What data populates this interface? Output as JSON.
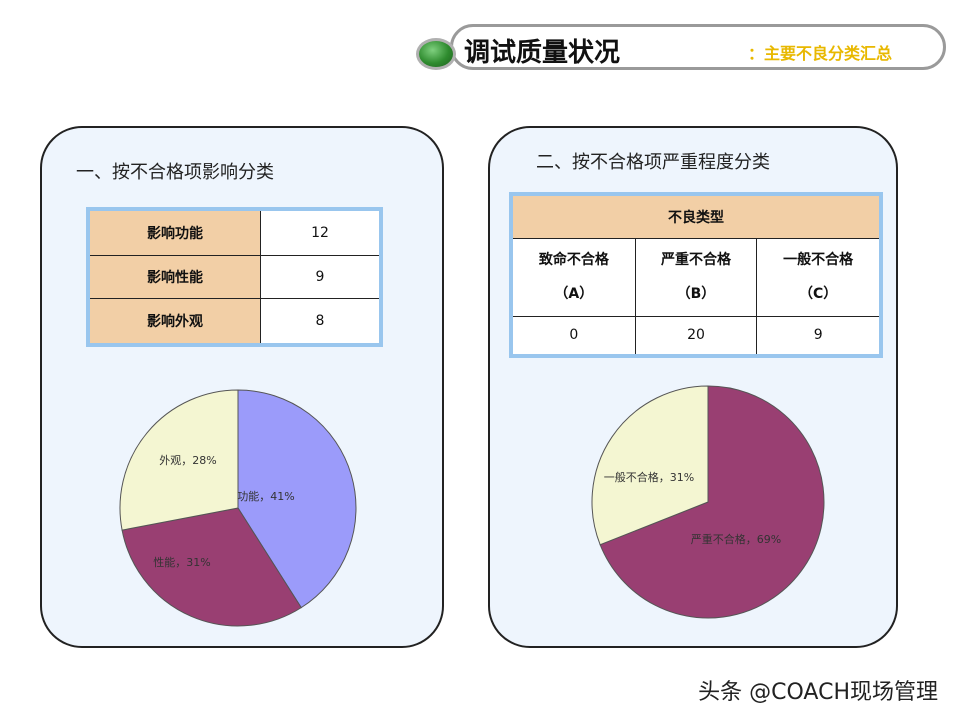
{
  "header": {
    "title": "调试质量状况",
    "subtitle": "：主要不良分类汇总"
  },
  "left_panel": {
    "title": "一、按不合格项影响分类",
    "rows": [
      {
        "label": "影响功能",
        "value": "12"
      },
      {
        "label": "影响性能",
        "value": "9"
      },
      {
        "label": "影响外观",
        "value": "8"
      }
    ]
  },
  "right_panel": {
    "title": "二、按不合格项严重程度分类",
    "table_header": "不良类型",
    "columns": [
      {
        "name": "致命不合格",
        "code": "（A）",
        "value": "0"
      },
      {
        "name": "严重不合格",
        "code": "（B）",
        "value": "20"
      },
      {
        "name": "一般不合格",
        "code": "（C）",
        "value": "9"
      }
    ]
  },
  "watermark": "头条 @COACH现场管理",
  "chart_data": [
    {
      "type": "pie",
      "slices": [
        {
          "label": "功能",
          "value": 41,
          "text": "功能，41%",
          "color": "#9b9bfa"
        },
        {
          "label": "性能",
          "value": 31,
          "text": "性能，31%",
          "color": "#993f72"
        },
        {
          "label": "外观",
          "value": 28,
          "text": "外观，28%",
          "color": "#f4f6d2"
        }
      ]
    },
    {
      "type": "pie",
      "slices": [
        {
          "label": "严重不合格",
          "value": 69,
          "text": "严重不合格，69%",
          "color": "#993f72"
        },
        {
          "label": "一般不合格",
          "value": 31,
          "text": "一般不合格，31%",
          "color": "#f4f6d2"
        }
      ]
    }
  ]
}
